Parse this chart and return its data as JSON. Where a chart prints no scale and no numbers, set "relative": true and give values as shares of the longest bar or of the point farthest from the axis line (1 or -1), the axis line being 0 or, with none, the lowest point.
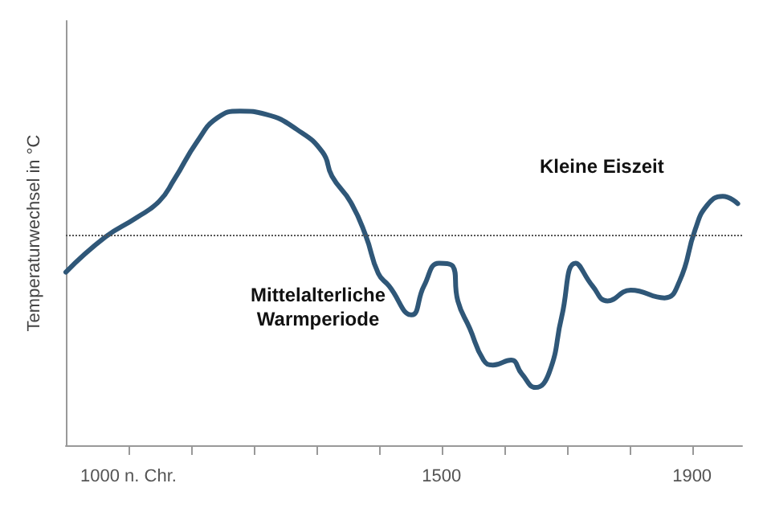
{
  "chart_data": {
    "type": "line",
    "ylabel": "Temperaturwechsel in °C",
    "relative": true,
    "grid": false,
    "xlim": [
      900,
      1980
    ],
    "xticks": [
      {
        "value": 1000,
        "label": "1000 n. Chr."
      },
      {
        "value": 1100,
        "label": null
      },
      {
        "value": 1200,
        "label": null
      },
      {
        "value": 1300,
        "label": null
      },
      {
        "value": 1400,
        "label": null
      },
      1500,
      {
        "value": 1600,
        "label": null
      },
      {
        "value": 1700,
        "label": null
      },
      {
        "value": 1800,
        "label": null
      },
      1900
    ],
    "x": [
      900,
      963,
      1012,
      1049,
      1073,
      1110,
      1142,
      1178,
      1220,
      1269,
      1310,
      1325,
      1355,
      1379,
      1399,
      1416,
      1452,
      1472,
      1496,
      1518,
      1526,
      1545,
      1567,
      1582,
      1611,
      1628,
      1650,
      1672,
      1692,
      1714,
      1741,
      1765,
      1802,
      1856,
      1880,
      1905,
      1924,
      1949,
      1973
    ],
    "series": [
      {
        "color": "#2f5778",
        "values": [
          0.518,
          0.623,
          0.68,
          0.73,
          0.795,
          0.91,
          0.98,
          1,
          0.99,
          0.945,
          0.877,
          0.805,
          0.727,
          0.627,
          0.514,
          0.477,
          0.39,
          0.477,
          0.545,
          0.536,
          0.432,
          0.35,
          0.255,
          0.24,
          0.255,
          0.214,
          0.173,
          0.218,
          0.386,
          0.545,
          0.477,
          0.432,
          0.464,
          0.441,
          0.491,
          0.645,
          0.718,
          0.745,
          0.723
        ]
      }
    ],
    "ref_lines": [
      {
        "axis": "y",
        "value": 0.627,
        "label": null,
        "color": "#555555",
        "line_style": "dotted"
      }
    ],
    "annotations": [
      "Kleine Eiszeit",
      "Mittelalterliche\nWarmperiode"
    ]
  }
}
